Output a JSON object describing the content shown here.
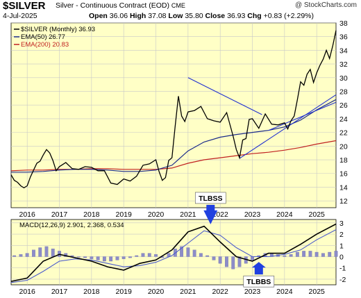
{
  "header": {
    "symbol": "$SILVER",
    "description": "Silver - Continuous Contract (EOD)",
    "exchange": "CME",
    "credit": "@ StockCharts.com",
    "date": "4-Jul-2025",
    "open_label": "Open",
    "open": "36.06",
    "high_label": "High",
    "high": "37.08",
    "low_label": "Low",
    "low": "35.80",
    "close_label": "Close",
    "close": "36.93",
    "chg_label": "Chg",
    "chg": "+0.83 (+2.29%)"
  },
  "colors": {
    "panel_bg": "#ffffc6",
    "price": "#000000",
    "ema50": "#1a2a8a",
    "ema200": "#c02020",
    "trendline": "#2030d0",
    "macd_line": "#000000",
    "signal_line": "#4a5acc",
    "histogram": "#8c8cc8",
    "arrow": "#2040e0"
  },
  "chart_data": [
    {
      "type": "line",
      "title": "",
      "legend": [
        {
          "label": "$SILVER (Monthly) 36.93"
        },
        {
          "label": "EMA(50) 26.77"
        },
        {
          "label": "EMA(200) 20.83"
        }
      ],
      "legend_placement": "top-left",
      "y_axis_side": "right",
      "ylim": [
        11,
        38
      ],
      "y_ticks": [
        12,
        14,
        16,
        18,
        20,
        22,
        24,
        26,
        28,
        30,
        32,
        34,
        36,
        38
      ],
      "x_ticks": [
        "2016",
        "2017",
        "2018",
        "2019",
        "2020",
        "2021",
        "2022",
        "2023",
        "2024",
        "2025"
      ],
      "xlim": [
        2015.5,
        2025.6
      ],
      "grid": true,
      "series": [
        {
          "name": "$SILVER (Monthly)",
          "x": [
            2015.5,
            2015.6,
            2015.7,
            2015.8,
            2015.9,
            2016.0,
            2016.1,
            2016.2,
            2016.3,
            2016.4,
            2016.5,
            2016.6,
            2016.7,
            2016.8,
            2016.9,
            2017.0,
            2017.2,
            2017.4,
            2017.6,
            2017.8,
            2018.0,
            2018.2,
            2018.4,
            2018.6,
            2018.8,
            2019.0,
            2019.2,
            2019.4,
            2019.6,
            2019.8,
            2020.0,
            2020.1,
            2020.2,
            2020.3,
            2020.4,
            2020.5,
            2020.6,
            2020.7,
            2020.8,
            2020.9,
            2021.0,
            2021.2,
            2021.4,
            2021.6,
            2021.8,
            2022.0,
            2022.2,
            2022.4,
            2022.5,
            2022.6,
            2022.7,
            2022.8,
            2022.9,
            2023.0,
            2023.2,
            2023.4,
            2023.6,
            2023.8,
            2024.0,
            2024.1,
            2024.2,
            2024.3,
            2024.4,
            2024.5,
            2024.6,
            2024.7,
            2024.8,
            2024.9,
            2025.0,
            2025.1,
            2025.2,
            2025.3,
            2025.4,
            2025.5,
            2025.6
          ],
          "values": [
            15.8,
            15.0,
            14.7,
            14.2,
            13.9,
            14.2,
            15.5,
            16.5,
            17.5,
            17.8,
            18.7,
            19.5,
            19.0,
            17.9,
            16.4,
            17.0,
            17.6,
            16.7,
            16.6,
            17.0,
            16.9,
            16.4,
            16.4,
            14.6,
            14.4,
            15.2,
            14.9,
            15.6,
            17.2,
            17.4,
            18.0,
            16.3,
            15.0,
            15.4,
            17.9,
            18.3,
            22.9,
            27.3,
            24.4,
            23.6,
            25.0,
            25.2,
            25.8,
            24.0,
            23.7,
            23.5,
            24.9,
            21.5,
            19.5,
            18.3,
            20.9,
            21.1,
            23.9,
            24.0,
            22.6,
            24.7,
            23.2,
            23.1,
            23.4,
            22.5,
            23.7,
            24.4,
            26.8,
            29.4,
            28.9,
            30.5,
            31.2,
            29.3,
            30.7,
            31.8,
            32.7,
            34.0,
            32.8,
            34.7,
            36.9
          ]
        },
        {
          "name": "EMA(50)",
          "x": [
            2015.5,
            2016.0,
            2016.5,
            2017.0,
            2017.5,
            2018.0,
            2018.5,
            2019.0,
            2019.5,
            2020.0,
            2020.5,
            2021.0,
            2021.5,
            2022.0,
            2022.5,
            2023.0,
            2023.5,
            2024.0,
            2024.5,
            2025.0,
            2025.6
          ],
          "values": [
            16.2,
            16.2,
            16.3,
            16.5,
            16.6,
            16.6,
            16.5,
            16.3,
            16.3,
            16.5,
            17.2,
            19.3,
            20.6,
            21.3,
            21.7,
            22.0,
            22.3,
            22.8,
            23.8,
            25.3,
            26.8
          ]
        },
        {
          "name": "EMA(200)",
          "x": [
            2015.5,
            2016.0,
            2016.5,
            2017.0,
            2017.5,
            2018.0,
            2018.5,
            2019.0,
            2019.5,
            2020.0,
            2020.5,
            2021.0,
            2021.5,
            2022.0,
            2022.5,
            2023.0,
            2023.5,
            2024.0,
            2024.5,
            2025.0,
            2025.6
          ],
          "values": [
            16.4,
            16.5,
            16.5,
            16.6,
            16.6,
            16.7,
            16.7,
            16.6,
            16.6,
            16.6,
            16.8,
            17.5,
            18.0,
            18.3,
            18.6,
            18.9,
            19.1,
            19.4,
            19.8,
            20.3,
            20.8
          ]
        }
      ],
      "trendlines": [
        {
          "x": [
            2021.0,
            2023.3
          ],
          "values": [
            30.0,
            24.6
          ]
        },
        {
          "x": [
            2022.6,
            2025.6
          ],
          "values": [
            18.2,
            27.5
          ]
        },
        {
          "x": [
            2023.5,
            2025.6
          ],
          "values": [
            22.3,
            26.4
          ]
        }
      ]
    },
    {
      "type": "bar",
      "legend": [
        {
          "label": "MACD(12,26,9) 2.901, 2.368, 0.534"
        }
      ],
      "legend_placement": "top-left",
      "y_axis_side": "right",
      "ylim": [
        -2.5,
        3.3
      ],
      "y_ticks": [
        -2,
        -1,
        0,
        1,
        2,
        3
      ],
      "x_ticks": [
        "2016",
        "2017",
        "2018",
        "2019",
        "2020",
        "2021",
        "2022",
        "2023",
        "2024",
        "2025"
      ],
      "xlim": [
        2015.5,
        2025.6
      ],
      "grid": true,
      "series": [
        {
          "name": "MACD",
          "x": [
            2015.5,
            2016.0,
            2016.5,
            2017.0,
            2017.5,
            2018.0,
            2018.5,
            2019.0,
            2019.5,
            2020.0,
            2020.5,
            2021.0,
            2021.5,
            2022.0,
            2022.5,
            2023.0,
            2023.5,
            2024.0,
            2024.5,
            2025.0,
            2025.6
          ],
          "values": [
            -2.2,
            -1.9,
            -0.4,
            0.2,
            -0.1,
            -0.4,
            -0.9,
            -1.2,
            -0.6,
            -0.3,
            0.6,
            2.2,
            2.7,
            1.3,
            0.0,
            -0.4,
            0.3,
            0.3,
            1.1,
            2.0,
            2.9
          ]
        },
        {
          "name": "Signal",
          "x": [
            2015.5,
            2016.0,
            2016.5,
            2017.0,
            2017.5,
            2018.0,
            2018.5,
            2019.0,
            2019.5,
            2020.0,
            2020.5,
            2021.0,
            2021.5,
            2022.0,
            2022.5,
            2023.0,
            2023.5,
            2024.0,
            2024.5,
            2025.0,
            2025.6
          ],
          "values": [
            -2.3,
            -2.1,
            -1.3,
            -0.4,
            -0.2,
            -0.3,
            -0.6,
            -0.9,
            -0.8,
            -0.5,
            0.1,
            1.2,
            2.3,
            1.9,
            0.8,
            0.0,
            0.0,
            0.2,
            0.6,
            1.5,
            2.4
          ]
        },
        {
          "name": "Histogram",
          "x": [
            2015.6,
            2015.8,
            2016.0,
            2016.2,
            2016.4,
            2016.6,
            2016.8,
            2017.0,
            2017.2,
            2017.4,
            2017.6,
            2017.8,
            2018.0,
            2018.2,
            2018.4,
            2018.6,
            2018.8,
            2019.0,
            2019.2,
            2019.4,
            2019.6,
            2019.8,
            2020.0,
            2020.2,
            2020.4,
            2020.6,
            2020.8,
            2021.0,
            2021.2,
            2021.4,
            2021.6,
            2021.8,
            2022.0,
            2022.2,
            2022.4,
            2022.6,
            2022.8,
            2023.0,
            2023.2,
            2023.4,
            2023.6,
            2023.8,
            2024.0,
            2024.2,
            2024.4,
            2024.6,
            2024.8,
            2025.0,
            2025.2,
            2025.4,
            2025.6
          ],
          "values": [
            0.1,
            0.2,
            0.3,
            0.6,
            0.8,
            0.9,
            0.7,
            0.5,
            0.3,
            0.1,
            0.0,
            -0.1,
            -0.2,
            -0.3,
            -0.4,
            -0.4,
            -0.3,
            -0.2,
            -0.1,
            0.1,
            0.3,
            0.3,
            0.2,
            -0.1,
            0.3,
            0.7,
            0.9,
            0.8,
            0.6,
            0.3,
            0.1,
            -0.3,
            -0.6,
            -0.9,
            -1.1,
            -0.9,
            -0.6,
            -0.3,
            0.1,
            0.3,
            0.3,
            0.2,
            0.1,
            0.2,
            0.4,
            0.5,
            0.5,
            0.4,
            0.3,
            0.4,
            0.5
          ]
        }
      ],
      "annotations": [
        {
          "label": "TLBSS",
          "x": 2021.7,
          "y": 2.75,
          "placement": "above",
          "arrow": "down"
        },
        {
          "label": "TLBBS",
          "x": 2023.2,
          "y": -0.35,
          "placement": "below",
          "arrow": "up"
        }
      ]
    }
  ]
}
